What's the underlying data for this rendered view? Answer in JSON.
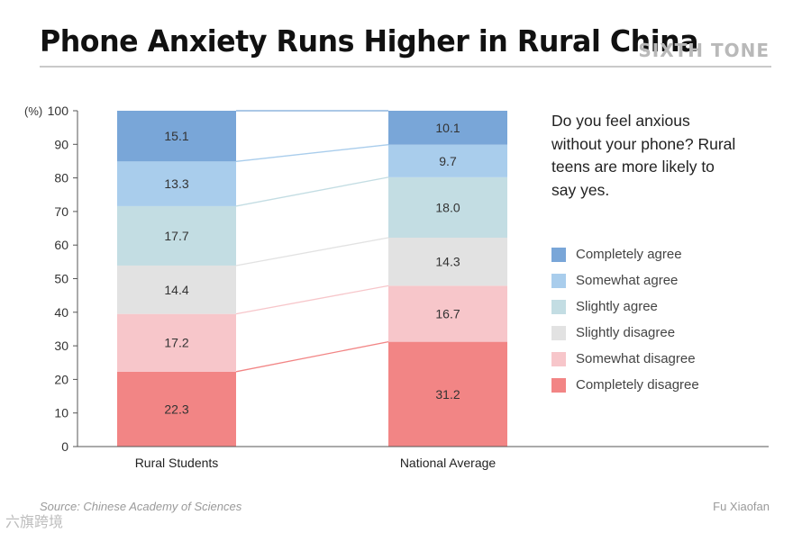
{
  "header": {
    "title": "Phone Anxiety Runs Higher in Rural China",
    "brand": "SIXTH TONE"
  },
  "question": "Do you feel anxious without your phone? Rural teens are more likely to say yes.",
  "footer": {
    "source": "Source: Chinese Academy of Sciences",
    "credit": "Fu Xiaofan",
    "watermark": "六旗跨境"
  },
  "chart_data": {
    "type": "bar",
    "stacked": true,
    "categories": [
      "Rural Students",
      "National Average"
    ],
    "ylabel": "(%)",
    "ylim": [
      0,
      100
    ],
    "yticks": [
      0,
      10,
      20,
      30,
      40,
      50,
      60,
      70,
      80,
      90,
      100
    ],
    "legend_position": "right",
    "series": [
      {
        "name": "Completely disagree",
        "values": [
          22.3,
          31.2
        ],
        "color": "#f28585"
      },
      {
        "name": "Somewhat disagree",
        "values": [
          17.2,
          16.7
        ],
        "color": "#f7c6ca"
      },
      {
        "name": "Slightly disagree",
        "values": [
          14.4,
          14.3
        ],
        "color": "#e2e2e2"
      },
      {
        "name": "Slightly agree",
        "values": [
          17.7,
          18.0
        ],
        "color": "#c3dde3"
      },
      {
        "name": "Somewhat agree",
        "values": [
          13.3,
          9.7
        ],
        "color": "#a9cdec"
      },
      {
        "name": "Completely agree",
        "values": [
          15.1,
          10.1
        ],
        "color": "#79a6d8"
      }
    ]
  }
}
